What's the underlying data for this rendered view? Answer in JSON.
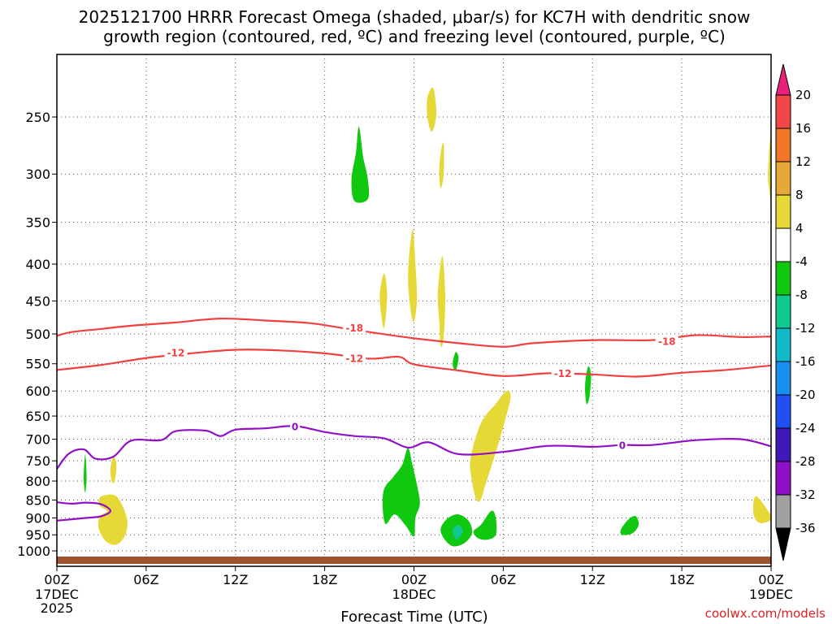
{
  "chart_data": {
    "type": "heatmap",
    "title_lines": [
      "2025121700 HRRR Forecast Omega (shaded, μbar/s) for KC7H with dendritic snow",
      "growth region (contoured, red, ºC) and freezing level (contoured, purple, ºC)"
    ],
    "xlabel": "Forecast Time (UTC)",
    "credit": "coolwx.com/models",
    "x_ticks": [
      {
        "h": 0,
        "label": "00Z",
        "sub": [
          "17DEC",
          "2025"
        ]
      },
      {
        "h": 6,
        "label": "06Z",
        "sub": []
      },
      {
        "h": 12,
        "label": "12Z",
        "sub": []
      },
      {
        "h": 18,
        "label": "18Z",
        "sub": []
      },
      {
        "h": 24,
        "label": "00Z",
        "sub": [
          "18DEC"
        ]
      },
      {
        "h": 30,
        "label": "06Z",
        "sub": []
      },
      {
        "h": 36,
        "label": "12Z",
        "sub": []
      },
      {
        "h": 42,
        "label": "18Z",
        "sub": []
      },
      {
        "h": 48,
        "label": "00Z",
        "sub": [
          "19DEC"
        ]
      }
    ],
    "xlim_hours": [
      0,
      48
    ],
    "y_ticks_hpa": [
      250,
      300,
      350,
      400,
      450,
      500,
      550,
      600,
      650,
      700,
      750,
      800,
      850,
      900,
      950,
      1000
    ],
    "ylim_hpa": [
      200,
      1030
    ],
    "y_scale": "log",
    "grid": true,
    "colorbar": {
      "labels": [
        "20",
        "16",
        "12",
        "8",
        "4",
        "-4",
        "-8",
        "-12",
        "-16",
        "-20",
        "-24",
        "-28",
        "-32",
        "-36"
      ],
      "colors": [
        "#e8207a",
        "#f04848",
        "#f07828",
        "#e6a838",
        "#e8d838",
        "#ffffff",
        "#10c810",
        "#10c890",
        "#10b8c8",
        "#1890f0",
        "#2050f0",
        "#4018b8",
        "#9010c8",
        "#a0a0a0",
        "#000000"
      ]
    },
    "dgz_contours": [
      {
        "label": "-18",
        "color": "#f04040",
        "points": [
          [
            0,
            503
          ],
          [
            1,
            497
          ],
          [
            3,
            492
          ],
          [
            5,
            487
          ],
          [
            8,
            482
          ],
          [
            11,
            476
          ],
          [
            14,
            479
          ],
          [
            17,
            483
          ],
          [
            19,
            490
          ],
          [
            21,
            497
          ],
          [
            24,
            507
          ],
          [
            27,
            515
          ],
          [
            30,
            521
          ],
          [
            32,
            515
          ],
          [
            36,
            510
          ],
          [
            40,
            510
          ],
          [
            43,
            502
          ],
          [
            46,
            505
          ],
          [
            48,
            504
          ]
        ],
        "label_at": [
          [
            20,
            490
          ],
          [
            41,
            511
          ]
        ]
      },
      {
        "label": "-12",
        "color": "#f04040",
        "points": [
          [
            0,
            561
          ],
          [
            3,
            552
          ],
          [
            6,
            540
          ],
          [
            9,
            532
          ],
          [
            12,
            526
          ],
          [
            15,
            527
          ],
          [
            18,
            532
          ],
          [
            21,
            541
          ],
          [
            23,
            538
          ],
          [
            24,
            551
          ],
          [
            27,
            562
          ],
          [
            30,
            572
          ],
          [
            33,
            567
          ],
          [
            36,
            569
          ],
          [
            39,
            573
          ],
          [
            42,
            566
          ],
          [
            45,
            561
          ],
          [
            48,
            553
          ]
        ],
        "label_at": [
          [
            8,
            530
          ],
          [
            20,
            540
          ],
          [
            34,
            566
          ]
        ]
      }
    ],
    "freezing_level": {
      "label": "0",
      "color": "#9010c8",
      "points": [
        [
          0,
          770
        ],
        [
          0.8,
          733
        ],
        [
          1.8,
          723
        ],
        [
          2.6,
          745
        ],
        [
          3.8,
          740
        ],
        [
          5,
          703
        ],
        [
          7,
          702
        ],
        [
          8,
          682
        ],
        [
          10,
          681
        ],
        [
          11,
          693
        ],
        [
          12,
          679
        ],
        [
          14,
          676
        ],
        [
          16,
          671
        ],
        [
          18,
          684
        ],
        [
          20,
          693
        ],
        [
          22,
          698
        ],
        [
          23.6,
          719
        ],
        [
          25,
          707
        ],
        [
          27,
          734
        ],
        [
          30,
          729
        ],
        [
          33,
          715
        ],
        [
          36,
          717
        ],
        [
          38,
          713
        ],
        [
          40,
          713
        ],
        [
          43,
          702
        ],
        [
          46,
          700
        ],
        [
          48,
          716
        ]
      ],
      "label_at": [
        [
          16,
          671
        ],
        [
          38,
          713
        ]
      ]
    },
    "freezing_level_lower": {
      "label": "0",
      "color": "#9010c8",
      "points": [
        [
          0,
          908
        ],
        [
          2,
          900
        ],
        [
          3,
          895
        ],
        [
          3.6,
          880
        ],
        [
          3,
          862
        ],
        [
          2,
          857
        ],
        [
          1,
          860
        ],
        [
          0,
          856
        ]
      ]
    },
    "omega_regions": [
      {
        "color": "#e6d836",
        "value_range": [
          4,
          8
        ],
        "points": [
          [
            24.9,
            235
          ],
          [
            25.3,
            228
          ],
          [
            25.5,
            248
          ],
          [
            25.2,
            262
          ],
          [
            24.9,
            250
          ]
        ]
      },
      {
        "color": "#e6d836",
        "value_range": [
          4,
          8
        ],
        "points": [
          [
            25.8,
            280
          ],
          [
            26.0,
            272
          ],
          [
            26.0,
            300
          ],
          [
            25.8,
            314
          ],
          [
            25.7,
            298
          ]
        ]
      },
      {
        "color": "#e6d836",
        "value_range": [
          4,
          8
        ],
        "points": [
          [
            21.7,
            440
          ],
          [
            22.0,
            412
          ],
          [
            22.2,
            443
          ],
          [
            22.0,
            490
          ],
          [
            21.8,
            470
          ]
        ]
      },
      {
        "color": "#e6d836",
        "value_range": [
          4,
          8
        ],
        "points": [
          [
            23.6,
            415
          ],
          [
            23.9,
            358
          ],
          [
            24.1,
            400
          ],
          [
            24.2,
            448
          ],
          [
            24.0,
            480
          ],
          [
            23.8,
            467
          ]
        ]
      },
      {
        "color": "#e6d836",
        "value_range": [
          4,
          8
        ],
        "points": [
          [
            25.6,
            440
          ],
          [
            25.9,
            390
          ],
          [
            26.1,
            440
          ],
          [
            26.0,
            505
          ],
          [
            25.8,
            520
          ],
          [
            25.7,
            480
          ]
        ]
      },
      {
        "color": "#e6d836",
        "value_range": [
          4,
          8
        ],
        "points": [
          [
            27.8,
            745
          ],
          [
            28.5,
            665
          ],
          [
            29.5,
            625
          ],
          [
            30.2,
            600
          ],
          [
            30.5,
            610
          ],
          [
            30.2,
            650
          ],
          [
            29.5,
            730
          ],
          [
            28.8,
            810
          ],
          [
            28.5,
            848
          ],
          [
            28.2,
            850
          ],
          [
            27.9,
            800
          ]
        ]
      },
      {
        "color": "#e6d836",
        "value_range": [
          4,
          8
        ],
        "points": [
          [
            3.6,
            770
          ],
          [
            3.8,
            740
          ],
          [
            4.0,
            758
          ],
          [
            3.9,
            800
          ],
          [
            3.7,
            802
          ]
        ]
      },
      {
        "color": "#e6d836",
        "value_range": [
          4,
          8
        ],
        "points": [
          [
            2.8,
            860
          ],
          [
            3.0,
            840
          ],
          [
            4.0,
            840
          ],
          [
            4.7,
            900
          ],
          [
            4.6,
            950
          ],
          [
            4.0,
            980
          ],
          [
            3.3,
            970
          ],
          [
            2.8,
            930
          ],
          [
            2.9,
            895
          ],
          [
            3.4,
            882
          ],
          [
            3.0,
            870
          ]
        ]
      },
      {
        "color": "#e6d836",
        "value_range": [
          4,
          8
        ],
        "points": [
          [
            47.8,
            300
          ],
          [
            48.0,
            262
          ],
          [
            48.0,
            330
          ],
          [
            47.9,
            318
          ]
        ]
      },
      {
        "color": "#e6d836",
        "value_range": [
          4,
          8
        ],
        "points": [
          [
            46.8,
            870
          ],
          [
            47.0,
            840
          ],
          [
            47.8,
            880
          ],
          [
            48.0,
            905
          ],
          [
            47.3,
            915
          ],
          [
            46.9,
            900
          ]
        ]
      },
      {
        "color": "#10c810",
        "value_range": [
          -8,
          -4
        ],
        "points": [
          [
            19.8,
            305
          ],
          [
            20.1,
            280
          ],
          [
            20.3,
            258
          ],
          [
            20.6,
            285
          ],
          [
            20.9,
            305
          ],
          [
            20.9,
            325
          ],
          [
            20.0,
            327
          ]
        ]
      },
      {
        "color": "#10c810",
        "value_range": [
          -8,
          -4
        ],
        "points": [
          [
            1.8,
            790
          ],
          [
            1.9,
            735
          ],
          [
            2.0,
            790
          ],
          [
            1.9,
            830
          ]
        ]
      },
      {
        "color": "#10c810",
        "value_range": [
          -8,
          -4
        ],
        "points": [
          [
            26.6,
            550
          ],
          [
            26.8,
            530
          ],
          [
            27.0,
            540
          ],
          [
            26.8,
            562
          ]
        ]
      },
      {
        "color": "#10c810",
        "value_range": [
          -8,
          -4
        ],
        "points": [
          [
            35.5,
            590
          ],
          [
            35.7,
            555
          ],
          [
            35.9,
            570
          ],
          [
            35.8,
            610
          ],
          [
            35.6,
            625
          ]
        ]
      },
      {
        "color": "#10c810",
        "value_range": [
          -8,
          -4
        ],
        "points": [
          [
            22.0,
            820
          ],
          [
            22.6,
            790
          ],
          [
            23.2,
            760
          ],
          [
            23.6,
            720
          ],
          [
            23.9,
            760
          ],
          [
            24.2,
            810
          ],
          [
            24.4,
            860
          ],
          [
            24.1,
            900
          ],
          [
            24.0,
            955
          ],
          [
            23.4,
            920
          ],
          [
            22.7,
            890
          ],
          [
            22.1,
            918
          ],
          [
            21.9,
            870
          ]
        ]
      },
      {
        "color": "#10c810",
        "value_range": [
          -8,
          -4
        ],
        "points": [
          [
            25.8,
            930
          ],
          [
            26.3,
            900
          ],
          [
            27.0,
            890
          ],
          [
            27.7,
            910
          ],
          [
            27.9,
            945
          ],
          [
            27.4,
            975
          ],
          [
            26.6,
            985
          ],
          [
            26.0,
            960
          ]
        ]
      },
      {
        "color": "#10c810",
        "value_range": [
          -8,
          -4
        ],
        "points": [
          [
            28.0,
            940
          ],
          [
            28.5,
            920
          ],
          [
            29.2,
            880
          ],
          [
            29.5,
            900
          ],
          [
            29.5,
            950
          ],
          [
            28.9,
            965
          ],
          [
            28.3,
            960
          ]
        ]
      },
      {
        "color": "#10c810",
        "value_range": [
          -8,
          -4
        ],
        "points": [
          [
            37.9,
            935
          ],
          [
            38.4,
            905
          ],
          [
            38.9,
            895
          ],
          [
            39.1,
            920
          ],
          [
            38.7,
            945
          ],
          [
            38.0,
            950
          ]
        ]
      },
      {
        "color": "#10c890",
        "value_range": [
          -12,
          -8
        ],
        "points": [
          [
            26.6,
            935
          ],
          [
            27.0,
            920
          ],
          [
            27.3,
            940
          ],
          [
            26.9,
            965
          ],
          [
            26.7,
            955
          ]
        ]
      }
    ]
  }
}
